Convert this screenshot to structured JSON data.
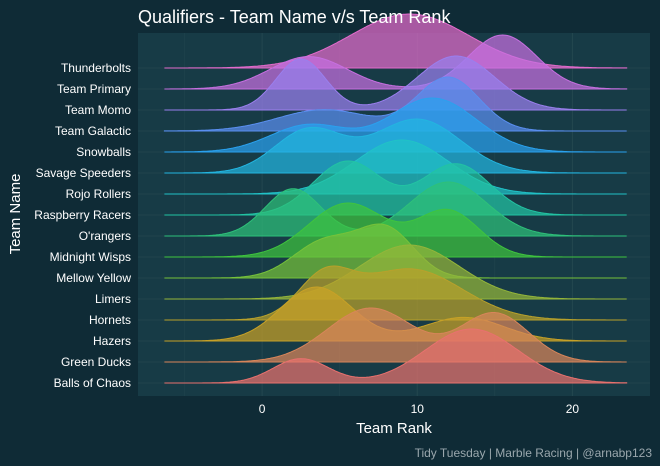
{
  "chart_data": {
    "type": "ridgeline",
    "title": "Qualifiers - Team Name v/s Team Rank",
    "xlabel": "Team Rank",
    "ylabel": "Team Name",
    "caption": "Tidy Tuesday | Marble Racing | @arnabp123",
    "xlim": [
      -8,
      25
    ],
    "x_ticks": [
      0,
      10,
      20
    ],
    "grid": true,
    "legend": "none",
    "colors": {
      "background": "#0f2b36",
      "panel": "#173b46",
      "grid": "#24474f",
      "text": "#ffffff",
      "caption": "#9aa7ad"
    },
    "series": [
      {
        "name": "Balls of Chaos",
        "color": "#e8716e",
        "peaks": [
          {
            "mean": 2.5,
            "sd": 1.8,
            "height": 0.45
          },
          {
            "mean": 13.5,
            "sd": 3.0,
            "height": 1.0
          }
        ]
      },
      {
        "name": "Green Ducks",
        "color": "#d8855a",
        "peaks": [
          {
            "mean": 7,
            "sd": 2.8,
            "height": 1.0
          },
          {
            "mean": 15,
            "sd": 2.2,
            "height": 0.9
          }
        ]
      },
      {
        "name": "Hazers",
        "color": "#c7a127",
        "peaks": [
          {
            "mean": 3.5,
            "sd": 2.3,
            "height": 0.8
          },
          {
            "mean": 13,
            "sd": 2.6,
            "height": 0.35
          }
        ]
      },
      {
        "name": "Hornets",
        "color": "#b8a12b",
        "peaks": [
          {
            "mean": 4,
            "sd": 1.7,
            "height": 0.75
          },
          {
            "mean": 9.5,
            "sd": 3.4,
            "height": 1.0
          }
        ]
      },
      {
        "name": "Limers",
        "color": "#94b53a",
        "peaks": [
          {
            "mean": 9.5,
            "sd": 3.2,
            "height": 1.0
          }
        ]
      },
      {
        "name": "Mellow Yellow",
        "color": "#76c23a",
        "peaks": [
          {
            "mean": 4,
            "sd": 2.0,
            "height": 0.75
          },
          {
            "mean": 8,
            "sd": 1.8,
            "height": 1.0
          }
        ]
      },
      {
        "name": "Midnight Wisps",
        "color": "#3fc43e",
        "peaks": [
          {
            "mean": 5.5,
            "sd": 2.5,
            "height": 1.0
          },
          {
            "mean": 12,
            "sd": 2.0,
            "height": 0.85
          }
        ]
      },
      {
        "name": "O'rangers",
        "color": "#2ec07a",
        "peaks": [
          {
            "mean": 2,
            "sd": 1.8,
            "height": 0.7
          },
          {
            "mean": 12,
            "sd": 2.5,
            "height": 0.8
          }
        ]
      },
      {
        "name": "Raspberry Racers",
        "color": "#22c3a3",
        "peaks": [
          {
            "mean": 5.5,
            "sd": 2.2,
            "height": 1.0
          },
          {
            "mean": 12.5,
            "sd": 2.2,
            "height": 0.95
          }
        ]
      },
      {
        "name": "Rojo Rollers",
        "color": "#21c2c7",
        "peaks": [
          {
            "mean": 9,
            "sd": 3.0,
            "height": 1.0
          }
        ]
      },
      {
        "name": "Savage Speeders",
        "color": "#23b5e0",
        "peaks": [
          {
            "mean": 3,
            "sd": 2.2,
            "height": 0.8
          },
          {
            "mean": 10,
            "sd": 2.8,
            "height": 1.0
          }
        ]
      },
      {
        "name": "Snowballs",
        "color": "#2aa1ee",
        "peaks": [
          {
            "mean": 3,
            "sd": 2.5,
            "height": 0.5
          },
          {
            "mean": 11,
            "sd": 2.8,
            "height": 1.0
          }
        ]
      },
      {
        "name": "Team Galactic",
        "color": "#5a8ff0",
        "peaks": [
          {
            "mean": 4,
            "sd": 3.0,
            "height": 0.4
          },
          {
            "mean": 12,
            "sd": 2.0,
            "height": 1.0
          }
        ]
      },
      {
        "name": "Team Momo",
        "color": "#9a7fee",
        "peaks": [
          {
            "mean": 2.5,
            "sd": 1.6,
            "height": 0.85
          },
          {
            "mean": 12.5,
            "sd": 2.5,
            "height": 0.9
          }
        ]
      },
      {
        "name": "Team Primary",
        "color": "#c66fe0",
        "peaks": [
          {
            "mean": 3,
            "sd": 2.5,
            "height": 0.6
          },
          {
            "mean": 15.5,
            "sd": 2.2,
            "height": 1.0
          }
        ]
      },
      {
        "name": "Thunderbolts",
        "color": "#e36bcc",
        "peaks": [
          {
            "mean": 9.5,
            "sd": 3.8,
            "height": 1.0
          }
        ]
      }
    ]
  }
}
